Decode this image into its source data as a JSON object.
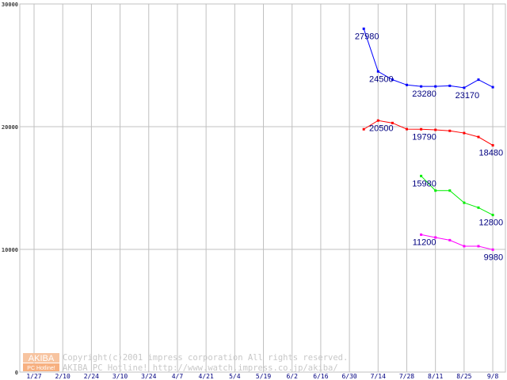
{
  "chart_data": {
    "type": "line",
    "title": "",
    "xlabel": "",
    "ylabel": "",
    "ylim": [
      0,
      30000
    ],
    "grid": true,
    "y_ticks": [
      "30000",
      "20000",
      "10000",
      "0"
    ],
    "y_tick_values": [
      30000,
      20000,
      10000,
      0
    ],
    "x_tick_labels": [
      "1/27",
      "2/10",
      "2/24",
      "3/10",
      "3/24",
      "4/7",
      "4/21",
      "5/4",
      "5/19",
      "6/2",
      "6/16",
      "6/30",
      "7/14",
      "7/28",
      "8/11",
      "8/25",
      "9/8"
    ],
    "x_weeks": [
      "7/7",
      "7/14",
      "7/21",
      "7/28",
      "8/4",
      "8/11",
      "8/18",
      "8/25",
      "9/1",
      "9/8"
    ],
    "series": [
      {
        "name": "blue",
        "color": "#0000ff",
        "start": 0,
        "values": [
          27980,
          24500,
          23830,
          23400,
          23280,
          23280,
          23330,
          23170,
          23830,
          23220
        ],
        "labels": [
          {
            "i": 0,
            "text": "27980"
          },
          {
            "i": 1,
            "text": "24500"
          },
          {
            "i": 4,
            "text": "23280"
          },
          {
            "i": 7,
            "text": "23170"
          }
        ]
      },
      {
        "name": "red",
        "color": "#ff0000",
        "start": 0,
        "values": [
          19790,
          20500,
          20300,
          19800,
          19790,
          19740,
          19660,
          19480,
          19160,
          18480
        ],
        "labels": [
          {
            "i": 1,
            "text": "20500"
          },
          {
            "i": 4,
            "text": "19790"
          },
          {
            "i": 9,
            "text": "18480"
          }
        ]
      },
      {
        "name": "green",
        "color": "#00ee00",
        "start": 4,
        "values": [
          15980,
          14790,
          14790,
          13800,
          13400,
          12800
        ],
        "labels": [
          {
            "i": 0,
            "text": "15980"
          },
          {
            "i": 5,
            "text": "12800"
          }
        ]
      },
      {
        "name": "magenta",
        "color": "#ff00ff",
        "start": 4,
        "values": [
          11200,
          10970,
          10750,
          10260,
          10260,
          9980
        ],
        "labels": [
          {
            "i": 0,
            "text": "11200"
          },
          {
            "i": 5,
            "text": "9980"
          }
        ]
      }
    ],
    "label_color": "#000080"
  },
  "watermark": {
    "logo_top": "AKIBA",
    "logo_bottom": "PC Hotline!",
    "line1": "Copyright(c)2001 impress corporation All rights reserved.",
    "line2": "AKIBA PC Hotline!  http://www.watch.impress.co.jp/akiba/"
  }
}
